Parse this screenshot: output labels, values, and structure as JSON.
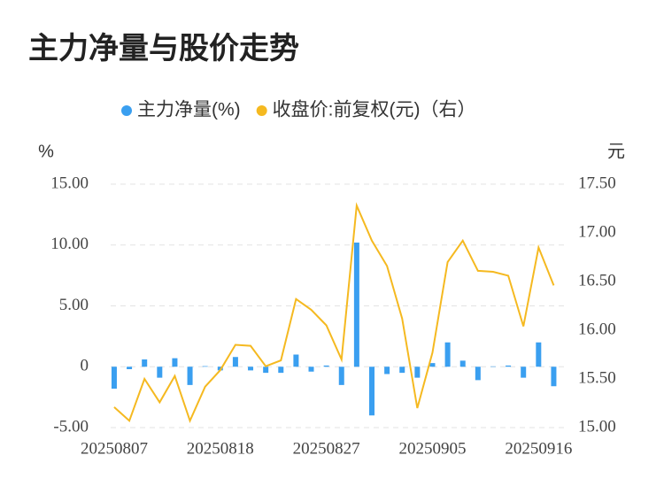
{
  "chart_data": {
    "type": "bar-line",
    "title": "主力净量与股价走势",
    "y_unit": "%",
    "y2_unit": "元",
    "categories": [
      "20250807",
      null,
      null,
      null,
      null,
      null,
      null,
      "20250818",
      null,
      null,
      null,
      null,
      null,
      null,
      "20250827",
      null,
      null,
      null,
      null,
      null,
      null,
      "20250905",
      null,
      null,
      null,
      null,
      null,
      null,
      "20250916",
      null
    ],
    "series": [
      {
        "name": "主力净量(%)",
        "type": "bar",
        "color": "#3a9ff0",
        "values": [
          -1.8,
          -0.2,
          0.6,
          -0.9,
          0.7,
          -1.5,
          0.05,
          -0.3,
          0.8,
          -0.3,
          -0.5,
          -0.5,
          1.0,
          -0.4,
          0.1,
          -1.5,
          10.2,
          -4.0,
          -0.6,
          -0.5,
          -0.9,
          0.3,
          2.0,
          0.5,
          -1.1,
          0.03,
          0.1,
          -0.9,
          2.0,
          -1.6
        ]
      },
      {
        "name": "收盘价:前复权(元)（右）",
        "type": "line",
        "axis": "y2",
        "color": "#f5b920",
        "values": [
          15.21,
          15.07,
          15.5,
          15.26,
          15.53,
          15.07,
          15.42,
          15.59,
          15.85,
          15.84,
          15.63,
          15.69,
          16.32,
          16.21,
          16.05,
          15.7,
          17.28,
          16.92,
          16.66,
          16.12,
          15.2,
          15.77,
          16.7,
          16.92,
          16.61,
          16.6,
          16.56,
          16.04,
          16.85,
          16.46
        ]
      }
    ],
    "ylim": [
      -5,
      15
    ],
    "yticks": [
      {
        "value": -5,
        "label": "-5.00"
      },
      0,
      {
        "value": 5,
        "label": "5.00"
      },
      {
        "value": 10,
        "label": "10.00"
      },
      {
        "value": 15,
        "label": "15.00"
      }
    ],
    "y2lim": [
      15,
      17.5
    ],
    "y2ticks": [
      {
        "value": 15,
        "label": "15.00"
      },
      {
        "value": 15.5,
        "label": "15.50"
      },
      {
        "value": 16,
        "label": "16.00"
      },
      {
        "value": 16.5,
        "label": "16.50"
      },
      {
        "value": 17,
        "label": "17.00"
      },
      {
        "value": 17.5,
        "label": "17.50"
      }
    ],
    "grid": true
  }
}
